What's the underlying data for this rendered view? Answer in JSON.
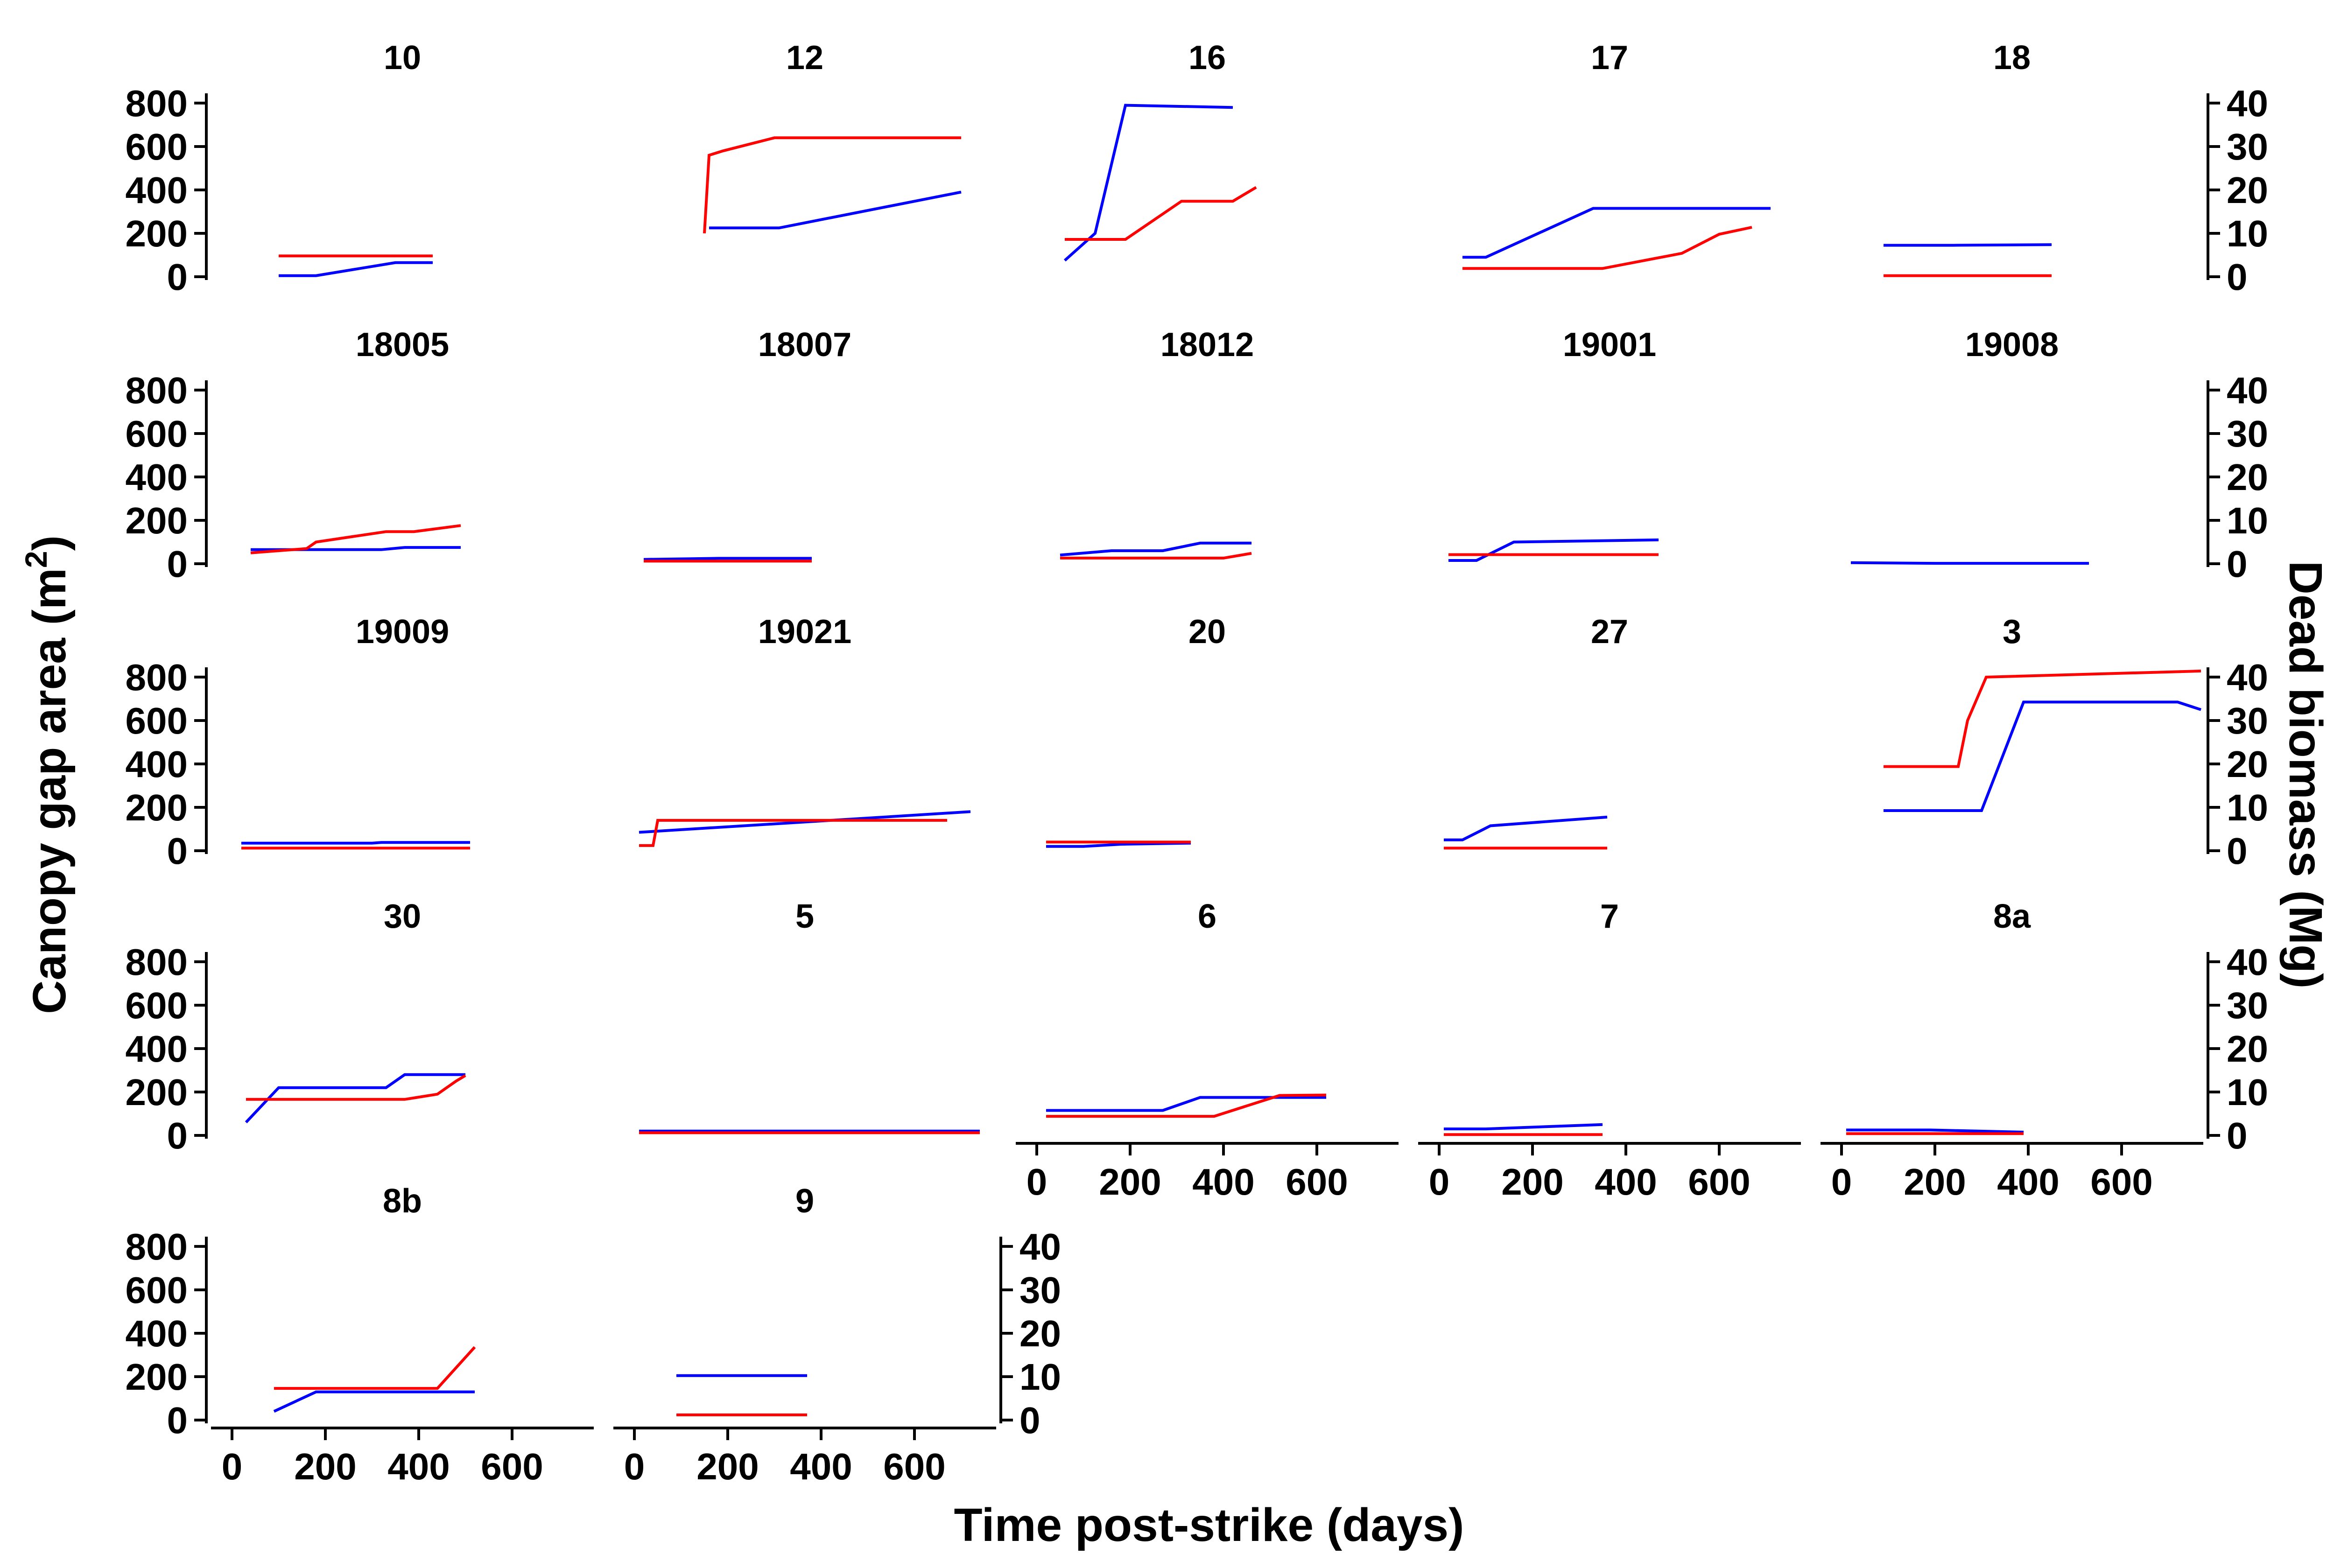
{
  "y_axis_label": "Canopy gap area (m",
  "y_axis_label_sup": "2",
  "y_axis_label_close": ")",
  "y2_axis_label": "Dead biomass (Mg)",
  "x_axis_label": "Time post-strike (days)",
  "colors": {
    "gap_area": "#0000ff",
    "dead_biomass": "#ff0000"
  },
  "chart_data": {
    "type": "line",
    "facet_layout": {
      "columns": 5,
      "rows": 5
    },
    "y_ticks": [
      0,
      200,
      400,
      600,
      800
    ],
    "y_tick_labels": [
      "0",
      "200",
      "400",
      "600",
      "800"
    ],
    "y2_ticks": [
      0,
      10,
      20,
      30,
      40
    ],
    "y2_tick_labels": [
      "0",
      "10",
      "20",
      "30",
      "40"
    ],
    "x_ticks": [
      0,
      200,
      400,
      600
    ],
    "x_tick_labels": [
      "0",
      "200",
      "400",
      "600"
    ],
    "x_range": [
      -45,
      775
    ],
    "y_range": [
      -15,
      845
    ],
    "y2_range": [
      -0.75,
      42.25
    ],
    "panels": [
      {
        "title": "10",
        "gap_area": [
          [
            100,
            5
          ],
          [
            180,
            5
          ],
          [
            350,
            65
          ],
          [
            430,
            65
          ]
        ],
        "dead_biomass": [
          [
            100,
            4.8
          ],
          [
            430,
            4.8
          ]
        ]
      },
      {
        "title": "12",
        "gap_area": [
          [
            160,
            225
          ],
          [
            310,
            225
          ],
          [
            700,
            390
          ]
        ],
        "dead_biomass": [
          [
            150,
            10
          ],
          [
            160,
            28
          ],
          [
            190,
            29
          ],
          [
            300,
            32
          ],
          [
            700,
            32
          ]
        ]
      },
      {
        "title": "16",
        "gap_area": [
          [
            60,
            75
          ],
          [
            125,
            200
          ],
          [
            190,
            790
          ],
          [
            420,
            780
          ]
        ],
        "dead_biomass": [
          [
            60,
            8.6
          ],
          [
            190,
            8.6
          ],
          [
            310,
            17.4
          ],
          [
            420,
            17.4
          ],
          [
            470,
            20.6
          ]
        ]
      },
      {
        "title": "17",
        "gap_area": [
          [
            50,
            90
          ],
          [
            100,
            90
          ],
          [
            330,
            315
          ],
          [
            710,
            315
          ]
        ],
        "dead_biomass": [
          [
            50,
            1.9
          ],
          [
            350,
            1.9
          ],
          [
            520,
            5.4
          ],
          [
            600,
            9.8
          ],
          [
            670,
            11.4
          ]
        ]
      },
      {
        "title": "18",
        "gap_area": [
          [
            90,
            145
          ],
          [
            240,
            145
          ],
          [
            450,
            148
          ]
        ],
        "dead_biomass": [
          [
            90,
            0.25
          ],
          [
            450,
            0.25
          ]
        ]
      },
      {
        "title": "18005",
        "gap_area": [
          [
            40,
            65
          ],
          [
            320,
            65
          ],
          [
            370,
            75
          ],
          [
            490,
            75
          ]
        ],
        "dead_biomass": [
          [
            40,
            2.5
          ],
          [
            160,
            3.5
          ],
          [
            180,
            5
          ],
          [
            330,
            7.4
          ],
          [
            390,
            7.4
          ],
          [
            490,
            8.8
          ]
        ]
      },
      {
        "title": "18007",
        "gap_area": [
          [
            20,
            20
          ],
          [
            180,
            25
          ],
          [
            380,
            25
          ]
        ],
        "dead_biomass": [
          [
            20,
            0.6
          ],
          [
            380,
            0.6
          ]
        ]
      },
      {
        "title": "18012",
        "gap_area": [
          [
            50,
            40
          ],
          [
            160,
            60
          ],
          [
            270,
            60
          ],
          [
            350,
            95
          ],
          [
            460,
            95
          ]
        ],
        "dead_biomass": [
          [
            50,
            1.3
          ],
          [
            400,
            1.3
          ],
          [
            460,
            2.4
          ]
        ]
      },
      {
        "title": "19001",
        "gap_area": [
          [
            20,
            15
          ],
          [
            80,
            15
          ],
          [
            160,
            100
          ],
          [
            470,
            110
          ]
        ],
        "dead_biomass": [
          [
            20,
            2.1
          ],
          [
            470,
            2.1
          ]
        ]
      },
      {
        "title": "19008",
        "gap_area": [
          [
            20,
            5
          ],
          [
            200,
            2
          ],
          [
            530,
            2
          ]
        ],
        "dead_biomass": []
      },
      {
        "title": "19009",
        "gap_area": [
          [
            20,
            35
          ],
          [
            300,
            35
          ],
          [
            320,
            38
          ],
          [
            510,
            38
          ]
        ],
        "dead_biomass": [
          [
            20,
            0.6
          ],
          [
            510,
            0.6
          ]
        ]
      },
      {
        "title": "19021",
        "gap_area": [
          [
            10,
            85
          ],
          [
            720,
            180
          ]
        ],
        "dead_biomass": [
          [
            10,
            1.2
          ],
          [
            40,
            1.2
          ],
          [
            50,
            7
          ],
          [
            670,
            7
          ]
        ]
      },
      {
        "title": "20",
        "gap_area": [
          [
            20,
            20
          ],
          [
            100,
            20
          ],
          [
            180,
            30
          ],
          [
            330,
            35
          ]
        ],
        "dead_biomass": [
          [
            20,
            2
          ],
          [
            330,
            2
          ]
        ]
      },
      {
        "title": "27",
        "gap_area": [
          [
            10,
            50
          ],
          [
            50,
            50
          ],
          [
            110,
            115
          ],
          [
            360,
            155
          ]
        ],
        "dead_biomass": [
          [
            10,
            0.6
          ],
          [
            360,
            0.6
          ]
        ]
      },
      {
        "title": "3",
        "gap_area": [
          [
            90,
            185
          ],
          [
            300,
            185
          ],
          [
            390,
            685
          ],
          [
            720,
            685
          ],
          [
            770,
            650
          ]
        ],
        "dead_biomass": [
          [
            90,
            19.4
          ],
          [
            250,
            19.4
          ],
          [
            270,
            30
          ],
          [
            310,
            40
          ],
          [
            770,
            41.4
          ]
        ]
      },
      {
        "title": "30",
        "gap_area": [
          [
            30,
            60
          ],
          [
            100,
            220
          ],
          [
            330,
            220
          ],
          [
            370,
            280
          ],
          [
            500,
            280
          ]
        ],
        "dead_biomass": [
          [
            30,
            8.3
          ],
          [
            370,
            8.3
          ],
          [
            440,
            9.5
          ],
          [
            480,
            12.5
          ],
          [
            500,
            13.8
          ]
        ]
      },
      {
        "title": "5",
        "gap_area": [
          [
            10,
            20
          ],
          [
            740,
            20
          ]
        ],
        "dead_biomass": [
          [
            10,
            0.6
          ],
          [
            740,
            0.6
          ]
        ]
      },
      {
        "title": "6",
        "gap_area": [
          [
            20,
            115
          ],
          [
            210,
            115
          ],
          [
            270,
            115
          ],
          [
            350,
            175
          ],
          [
            620,
            175
          ]
        ],
        "dead_biomass": [
          [
            20,
            4.4
          ],
          [
            280,
            4.4
          ],
          [
            380,
            4.4
          ],
          [
            520,
            9.2
          ],
          [
            620,
            9.3
          ]
        ]
      },
      {
        "title": "7",
        "gap_area": [
          [
            10,
            30
          ],
          [
            100,
            30
          ],
          [
            350,
            50
          ]
        ],
        "dead_biomass": [
          [
            10,
            0.2
          ],
          [
            350,
            0.2
          ]
        ]
      },
      {
        "title": "8a",
        "gap_area": [
          [
            10,
            25
          ],
          [
            190,
            25
          ],
          [
            390,
            15
          ]
        ],
        "dead_biomass": [
          [
            10,
            0.4
          ],
          [
            390,
            0.4
          ]
        ]
      },
      {
        "title": "8b",
        "gap_area": [
          [
            90,
            40
          ],
          [
            180,
            130
          ],
          [
            520,
            130
          ]
        ],
        "dead_biomass": [
          [
            90,
            7.3
          ],
          [
            440,
            7.3
          ],
          [
            520,
            16.8
          ]
        ]
      },
      {
        "title": "9",
        "gap_area": [
          [
            90,
            205
          ],
          [
            370,
            205
          ]
        ],
        "dead_biomass": [
          [
            90,
            1.2
          ],
          [
            370,
            1.2
          ]
        ]
      }
    ]
  }
}
